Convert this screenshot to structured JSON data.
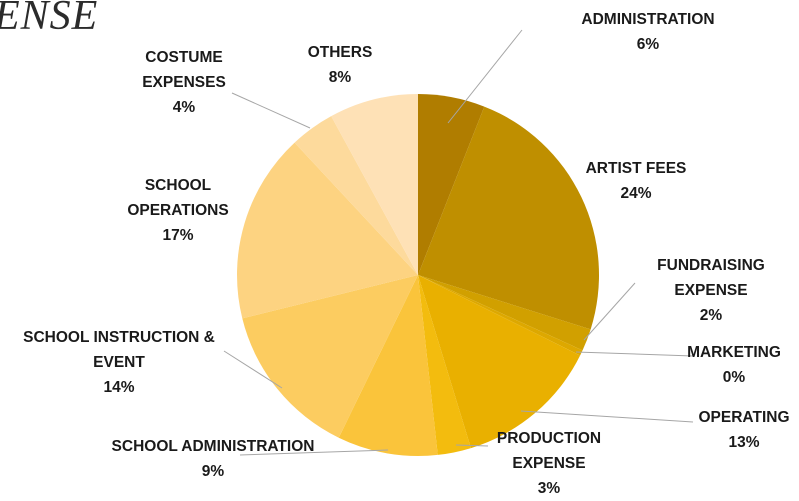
{
  "chart_data": {
    "type": "pie",
    "title": "ENSE",
    "slices": [
      {
        "label": [
          "ADMINISTRATION"
        ],
        "value": 6,
        "pct": "6%",
        "color": "#B07D00"
      },
      {
        "label": [
          "ARTIST FEES"
        ],
        "value": 24,
        "pct": "24%",
        "color": "#BF8F00"
      },
      {
        "label": [
          "FUNDRAISING",
          "EXPENSE"
        ],
        "value": 2,
        "pct": "2%",
        "color": "#D1A000"
      },
      {
        "label": [
          "MARKETING"
        ],
        "value": 0.5,
        "pct": "0%",
        "color": "#DDA800"
      },
      {
        "label": [
          "OPERATING"
        ],
        "value": 13,
        "pct": "13%",
        "color": "#E9B000"
      },
      {
        "label": [
          "PRODUCTION",
          "EXPENSE"
        ],
        "value": 3,
        "pct": "3%",
        "color": "#F3BC0E"
      },
      {
        "label": [
          "SCHOOL ADMINISTRATION"
        ],
        "value": 9,
        "pct": "9%",
        "color": "#FAC43B"
      },
      {
        "label": [
          "SCHOOL INSTRUCTION &",
          "EVENT"
        ],
        "value": 14,
        "pct": "14%",
        "color": "#FCCC60"
      },
      {
        "label": [
          "SCHOOL",
          "OPERATIONS"
        ],
        "value": 17,
        "pct": "17%",
        "color": "#FDD381"
      },
      {
        "label": [
          "COSTUME",
          "EXPENSES"
        ],
        "value": 4,
        "pct": "4%",
        "color": "#FDDA9C"
      },
      {
        "label": [
          "OTHERS"
        ],
        "value": 8,
        "pct": "8%",
        "color": "#FEE1B6"
      }
    ]
  }
}
